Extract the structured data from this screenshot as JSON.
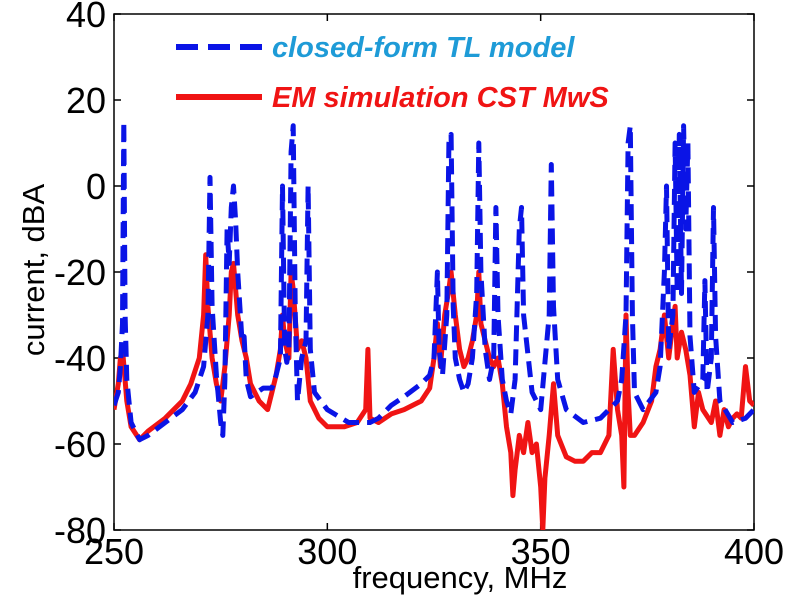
{
  "chart_data": {
    "type": "line",
    "xlabel": "frequency, MHz",
    "ylabel": "current, dBA",
    "xlim": [
      250,
      400
    ],
    "ylim": [
      -80,
      40
    ],
    "x_ticks": [
      "250",
      "300",
      "350",
      "400"
    ],
    "y_ticks": [
      "40",
      "20",
      "0",
      "-20",
      "-40",
      "-60",
      "-80"
    ],
    "grid": false,
    "legend_position": "top",
    "series": [
      {
        "name": "closed-form TL model",
        "color": "#0a14e6",
        "legend_text_color": "#1e9bd7",
        "style": "dashed",
        "points": [
          [
            250,
            -51
          ],
          [
            251,
            -48
          ],
          [
            251.5,
            -42
          ],
          [
            252,
            -32
          ],
          [
            252.3,
            15
          ],
          [
            252.6,
            -30
          ],
          [
            253,
            -45
          ],
          [
            254,
            -55
          ],
          [
            256,
            -59
          ],
          [
            258,
            -58
          ],
          [
            262,
            -55
          ],
          [
            266,
            -52
          ],
          [
            269,
            -48
          ],
          [
            271,
            -42
          ],
          [
            272,
            -30
          ],
          [
            272.5,
            2
          ],
          [
            273,
            -28
          ],
          [
            274,
            -44
          ],
          [
            275,
            -55
          ],
          [
            275.5,
            -58
          ],
          [
            276,
            -45
          ],
          [
            276.5,
            -10
          ],
          [
            277,
            -18
          ],
          [
            277.5,
            -5
          ],
          [
            278,
            0
          ],
          [
            278.5,
            -8
          ],
          [
            279,
            -20
          ],
          [
            280,
            -36
          ],
          [
            280.5,
            -35
          ],
          [
            281,
            -45
          ],
          [
            282,
            -49
          ],
          [
            285,
            -47
          ],
          [
            287,
            -47
          ],
          [
            288,
            -44
          ],
          [
            289,
            -40
          ],
          [
            289.5,
            0
          ],
          [
            290,
            -38
          ],
          [
            290.5,
            -41
          ],
          [
            291,
            -38
          ],
          [
            291.5,
            8
          ],
          [
            292,
            14
          ],
          [
            292.5,
            -30
          ],
          [
            293,
            -50
          ],
          [
            294,
            -40
          ],
          [
            295,
            -36
          ],
          [
            295.5,
            0
          ],
          [
            296,
            -38
          ],
          [
            297,
            -48
          ],
          [
            300,
            -52
          ],
          [
            305,
            -55
          ],
          [
            310,
            -55
          ],
          [
            312,
            -54
          ],
          [
            315,
            -51
          ],
          [
            318,
            -49
          ],
          [
            322,
            -46
          ],
          [
            324,
            -44
          ],
          [
            325,
            -40
          ],
          [
            325.8,
            -20
          ],
          [
            326.2,
            -38
          ],
          [
            327,
            -44
          ],
          [
            328,
            -30
          ],
          [
            328.5,
            10
          ],
          [
            329,
            12
          ],
          [
            329.5,
            -28
          ],
          [
            330,
            -40
          ],
          [
            331,
            -45
          ],
          [
            332,
            -48
          ],
          [
            333,
            -46
          ],
          [
            334,
            -40
          ],
          [
            335,
            -25
          ],
          [
            335.5,
            10
          ],
          [
            336,
            -20
          ],
          [
            337,
            -38
          ],
          [
            338,
            -45
          ],
          [
            339,
            -40
          ],
          [
            339.5,
            -5
          ],
          [
            340,
            -30
          ],
          [
            341,
            -45
          ],
          [
            342,
            -50
          ],
          [
            343,
            -53
          ],
          [
            344,
            -45
          ],
          [
            345,
            -10
          ],
          [
            345.5,
            -5
          ],
          [
            346,
            -30
          ],
          [
            348,
            -48
          ],
          [
            350,
            -52
          ],
          [
            352,
            -30
          ],
          [
            352.5,
            5
          ],
          [
            353,
            -28
          ],
          [
            354,
            -45
          ],
          [
            356,
            -52
          ],
          [
            360,
            -55
          ],
          [
            364,
            -54
          ],
          [
            368,
            -50
          ],
          [
            369,
            -45
          ],
          [
            370,
            -30
          ],
          [
            370.5,
            10
          ],
          [
            371,
            14
          ],
          [
            371.5,
            -30
          ],
          [
            372,
            -48
          ],
          [
            374,
            -52
          ],
          [
            377,
            -48
          ],
          [
            378,
            -42
          ],
          [
            379,
            -20
          ],
          [
            379.5,
            0
          ],
          [
            380,
            -38
          ],
          [
            381,
            -30
          ],
          [
            381.5,
            10
          ],
          [
            382,
            -25
          ],
          [
            382.5,
            12
          ],
          [
            383,
            -25
          ],
          [
            383.5,
            14
          ],
          [
            384,
            -10
          ],
          [
            384.5,
            10
          ],
          [
            385,
            -35
          ],
          [
            386,
            -48
          ],
          [
            388,
            -45
          ],
          [
            388.5,
            -22
          ],
          [
            389,
            -48
          ],
          [
            390,
            -40
          ],
          [
            390.5,
            -5
          ],
          [
            391,
            -35
          ],
          [
            392,
            -50
          ],
          [
            395,
            -55
          ],
          [
            398,
            -54
          ],
          [
            400,
            -52
          ]
        ]
      },
      {
        "name": "EM simulation CST MwS",
        "color": "#f01414",
        "legend_text_color": "#f01414",
        "style": "solid",
        "points": [
          [
            250,
            -52
          ],
          [
            251,
            -46
          ],
          [
            251.5,
            -40
          ],
          [
            252,
            -38
          ],
          [
            252.5,
            -44
          ],
          [
            253,
            -50
          ],
          [
            254,
            -56
          ],
          [
            256,
            -59
          ],
          [
            258,
            -57
          ],
          [
            262,
            -54
          ],
          [
            266,
            -50
          ],
          [
            268,
            -46
          ],
          [
            270,
            -40
          ],
          [
            271,
            -30
          ],
          [
            271.5,
            -16
          ],
          [
            272,
            -28
          ],
          [
            273,
            -40
          ],
          [
            274,
            -46
          ],
          [
            275,
            -50
          ],
          [
            276,
            -42
          ],
          [
            277,
            -30
          ],
          [
            277.5,
            -20
          ],
          [
            278,
            -18
          ],
          [
            278.5,
            -24
          ],
          [
            279,
            -30
          ],
          [
            280,
            -36
          ],
          [
            281,
            -40
          ],
          [
            282,
            -46
          ],
          [
            284,
            -50
          ],
          [
            286,
            -52
          ],
          [
            287,
            -48
          ],
          [
            288,
            -44
          ],
          [
            289,
            -38
          ],
          [
            289.5,
            -30
          ],
          [
            290,
            -36
          ],
          [
            291,
            -40
          ],
          [
            291.5,
            -20
          ],
          [
            292,
            -24
          ],
          [
            293,
            -38
          ],
          [
            294,
            -36
          ],
          [
            295,
            -40
          ],
          [
            296,
            -50
          ],
          [
            298,
            -54
          ],
          [
            300,
            -56
          ],
          [
            304,
            -56
          ],
          [
            307,
            -55
          ],
          [
            309,
            -52
          ],
          [
            309.5,
            -38
          ],
          [
            310,
            -54
          ],
          [
            312,
            -55
          ],
          [
            315,
            -53
          ],
          [
            318,
            -52
          ],
          [
            322,
            -50
          ],
          [
            324,
            -47
          ],
          [
            325,
            -40
          ],
          [
            325.8,
            -32
          ],
          [
            326.5,
            -42
          ],
          [
            327.5,
            -30
          ],
          [
            328.5,
            -24
          ],
          [
            329,
            -20
          ],
          [
            330,
            -30
          ],
          [
            331,
            -38
          ],
          [
            332,
            -42
          ],
          [
            333,
            -40
          ],
          [
            334,
            -36
          ],
          [
            335,
            -30
          ],
          [
            335.5,
            -20
          ],
          [
            336,
            -32
          ],
          [
            337,
            -36
          ],
          [
            338,
            -40
          ],
          [
            339,
            -42
          ],
          [
            340,
            -40
          ],
          [
            341,
            -46
          ],
          [
            342,
            -56
          ],
          [
            343,
            -62
          ],
          [
            343.5,
            -72
          ],
          [
            344,
            -66
          ],
          [
            345,
            -58
          ],
          [
            346,
            -62
          ],
          [
            347,
            -55
          ],
          [
            348,
            -62
          ],
          [
            349,
            -60
          ],
          [
            350,
            -70
          ],
          [
            350.5,
            -80
          ],
          [
            351,
            -68
          ],
          [
            352,
            -58
          ],
          [
            353,
            -46
          ],
          [
            354,
            -58
          ],
          [
            356,
            -63
          ],
          [
            358,
            -64
          ],
          [
            360,
            -64
          ],
          [
            362,
            -62
          ],
          [
            364,
            -62
          ],
          [
            366,
            -58
          ],
          [
            367,
            -38
          ],
          [
            368,
            -52
          ],
          [
            369,
            -58
          ],
          [
            369.5,
            -70
          ],
          [
            370,
            -30
          ],
          [
            370.5,
            -48
          ],
          [
            371,
            -58
          ],
          [
            372,
            -58
          ],
          [
            374,
            -55
          ],
          [
            376,
            -50
          ],
          [
            377,
            -42
          ],
          [
            378,
            -38
          ],
          [
            379,
            -30
          ],
          [
            380,
            -40
          ],
          [
            381,
            -32
          ],
          [
            381.5,
            -28
          ],
          [
            382,
            -40
          ],
          [
            383,
            -34
          ],
          [
            384,
            -38
          ],
          [
            385,
            -44
          ],
          [
            386,
            -56
          ],
          [
            387,
            -48
          ],
          [
            388,
            -52
          ],
          [
            390,
            -55
          ],
          [
            391,
            -50
          ],
          [
            392,
            -58
          ],
          [
            393,
            -52
          ],
          [
            394,
            -56
          ],
          [
            395,
            -54
          ],
          [
            396,
            -53
          ],
          [
            397,
            -54
          ],
          [
            398,
            -42
          ],
          [
            399,
            -50
          ],
          [
            400,
            -51
          ]
        ]
      }
    ]
  }
}
